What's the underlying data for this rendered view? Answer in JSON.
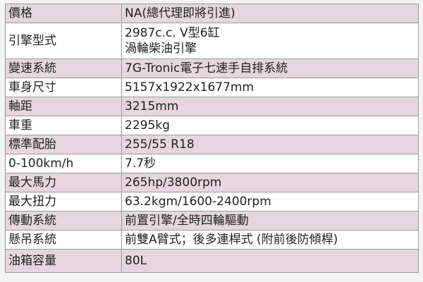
{
  "colors": {
    "shaded_row": "#e5d7dd",
    "plain_row": "#ffffff",
    "border": "#9a9a9a"
  },
  "specs": [
    {
      "label": "價格",
      "value": [
        "NA(總代理即將引進)"
      ]
    },
    {
      "label": "引擎型式",
      "value": [
        "2987c.c. V型6缸",
        "渦輪柴油引擎"
      ]
    },
    {
      "label": "變速系統",
      "value": [
        "7G-Tronic電子七速手自排系統"
      ]
    },
    {
      "label": "車身尺寸",
      "value": [
        "5157x1922x1677mm"
      ]
    },
    {
      "label": "軸距",
      "value": [
        "3215mm"
      ]
    },
    {
      "label": "車重",
      "value": [
        "2295kg"
      ]
    },
    {
      "label": "標準配胎",
      "value": [
        "255/55 R18"
      ]
    },
    {
      "label": "0-100km/h",
      "value": [
        "7.7秒"
      ]
    },
    {
      "label": "最大馬力",
      "value": [
        "265hp/3800rpm"
      ]
    },
    {
      "label": "最大扭力",
      "value": [
        "63.2kgm/1600-2400rpm"
      ]
    },
    {
      "label": "傳動系統",
      "value": [
        "前置引擎/全時四輪驅動"
      ]
    },
    {
      "label": "懸吊系統",
      "value": [
        "前雙A臂式；後多連桿式 (附前後防傾桿)"
      ]
    },
    {
      "label": "油箱容量",
      "value": [
        "80L"
      ]
    }
  ]
}
